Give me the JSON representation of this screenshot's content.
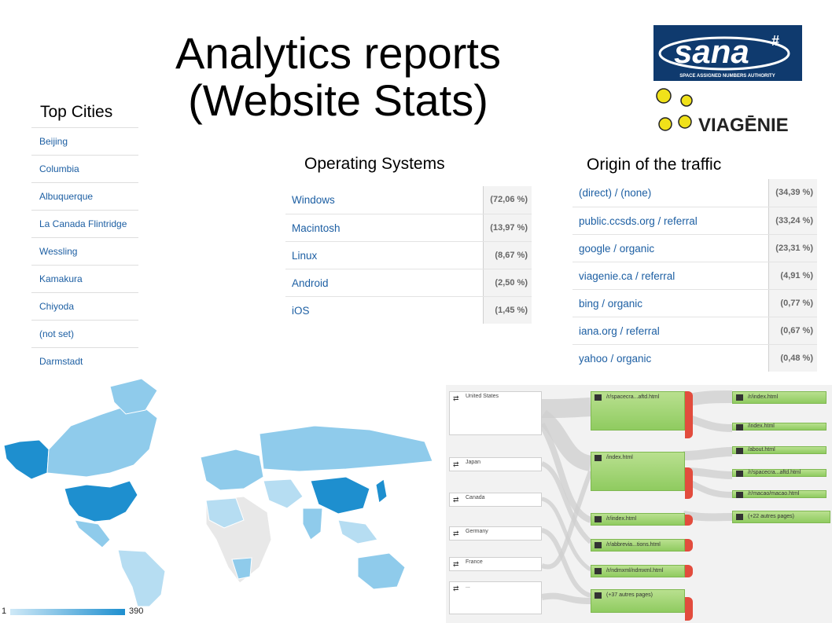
{
  "title_line1": "Analytics reports",
  "title_line2": "(Website Stats)",
  "logos": {
    "sana_text": "sana",
    "sana_mark": "#",
    "sana_subtitle": "SPACE ASSIGNED NUMBERS AUTHORITY",
    "viagenie_text": "VIAGĒNIE"
  },
  "top_cities": {
    "heading": "Top Cities",
    "items": [
      "Beijing",
      "Columbia",
      "Albuquerque",
      "La Canada Flintridge",
      "Wessling",
      "Kamakura",
      "Chiyoda",
      "(not set)",
      "Darmstadt"
    ]
  },
  "operating_systems": {
    "heading": "Operating Systems",
    "rows": [
      {
        "name": "Windows",
        "pct": "(72,06 %)"
      },
      {
        "name": "Macintosh",
        "pct": "(13,97 %)"
      },
      {
        "name": "Linux",
        "pct": "(8,67 %)"
      },
      {
        "name": "Android",
        "pct": "(2,50 %)"
      },
      {
        "name": "iOS",
        "pct": "(1,45 %)"
      }
    ]
  },
  "traffic_origin": {
    "heading": "Origin of the traffic",
    "rows": [
      {
        "name": "(direct) / (none)",
        "pct": "(34,39 %)"
      },
      {
        "name": "public.ccsds.org / referral",
        "pct": "(33,24 %)"
      },
      {
        "name": "google / organic",
        "pct": "(23,31 %)"
      },
      {
        "name": "viagenie.ca / referral",
        "pct": "(4,91 %)"
      },
      {
        "name": "bing / organic",
        "pct": "(0,77 %)"
      },
      {
        "name": "iana.org / referral",
        "pct": "(0,67 %)"
      },
      {
        "name": "yahoo / organic",
        "pct": "(0,48 %)"
      }
    ]
  },
  "map_legend": {
    "min": "1",
    "max": "390"
  },
  "flow": {
    "countries": [
      "United States",
      "Japan",
      "Canada",
      "Germany",
      "France",
      "..."
    ],
    "step1_pages": [
      "/r/spacecra...aftd.html",
      "/index.html",
      "/r/index.html",
      "/r/abbrevia...tions.html",
      "/r/ndmxml/ndmxml.html",
      "(+37 autres pages)"
    ],
    "step2_pages": [
      "/r/index.html",
      "/index.html",
      "/about.html",
      "/r/spacecra...aftd.html",
      "/r/macao/macao.html",
      "(+22 autres pages)"
    ]
  },
  "colors": {
    "link": "#1d5fa3",
    "map_high": "#1e8fcf",
    "map_low": "#cfe9f7",
    "flow_green": "#8fcb60",
    "flow_drop": "#e24c3d"
  }
}
